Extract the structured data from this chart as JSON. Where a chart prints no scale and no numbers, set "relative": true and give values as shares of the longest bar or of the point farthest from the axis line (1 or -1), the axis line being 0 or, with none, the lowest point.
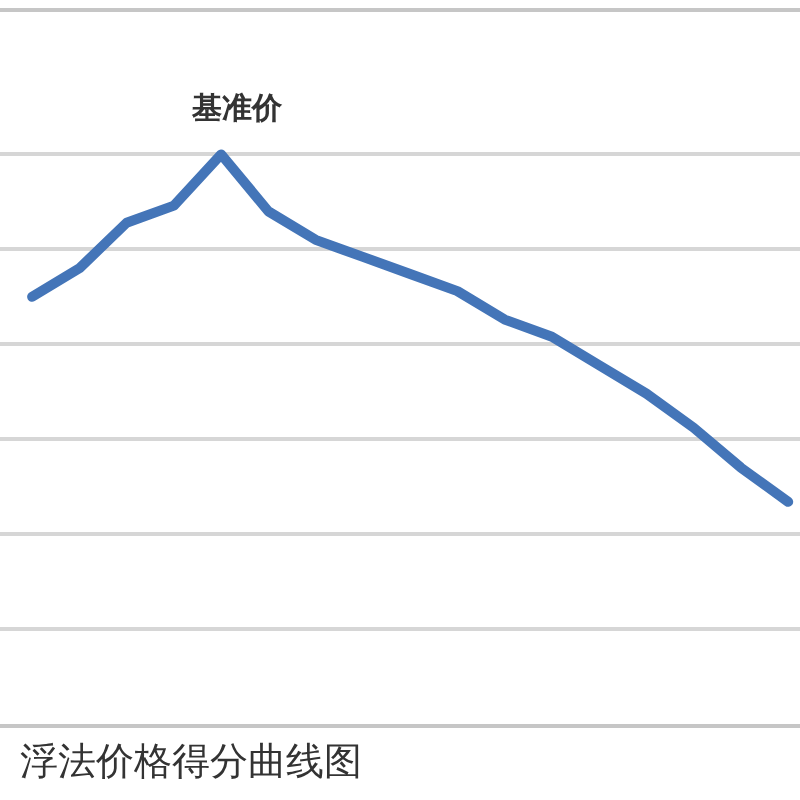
{
  "chart_data": {
    "type": "line",
    "relative": true,
    "categories": [
      null,
      null,
      null,
      null,
      null,
      null,
      null,
      null,
      null,
      null,
      null,
      null,
      null,
      null,
      null,
      null,
      null
    ],
    "series": [
      {
        "color": "#4475b8",
        "values": [
          0.75,
          0.8,
          0.88,
          0.91,
          1.0,
          0.9,
          0.85,
          0.82,
          0.79,
          0.76,
          0.71,
          0.68,
          0.63,
          0.58,
          0.52,
          0.45,
          0.39
        ]
      }
    ],
    "annotations": [
      {
        "text": "基准价",
        "y": 1.0
      },
      "浮法价格得分曲线图"
    ],
    "grid": "y"
  }
}
